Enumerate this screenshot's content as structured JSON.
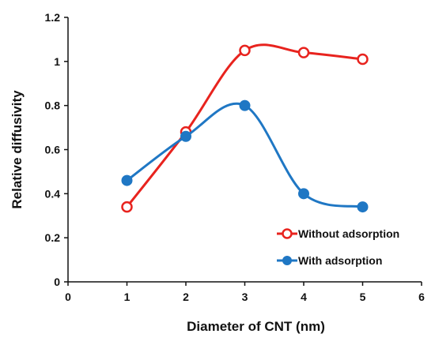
{
  "chart_data": {
    "type": "line",
    "title": "",
    "xlabel": "Diameter of CNT (nm)",
    "ylabel": "Relative diffusivity",
    "xlim": [
      0,
      6
    ],
    "ylim": [
      0,
      1.2
    ],
    "x_ticks": [
      0,
      1,
      2,
      3,
      4,
      5,
      6
    ],
    "y_ticks": [
      0,
      0.2,
      0.4,
      0.6,
      0.8,
      1,
      1.2
    ],
    "x_tick_labels": [
      "0",
      "1",
      "2",
      "3",
      "4",
      "5",
      "6"
    ],
    "y_tick_labels": [
      "0",
      "0.2",
      "0.4",
      "0.6",
      "0.8",
      "1",
      "1.2"
    ],
    "grid": false,
    "legend_position": "bottom-right",
    "smooth": true,
    "series": [
      {
        "name": "Without adsorption",
        "color": "#e8231e",
        "marker": "hollow-circle",
        "x": [
          1,
          2,
          3,
          4,
          5
        ],
        "y": [
          0.34,
          0.68,
          1.05,
          1.04,
          1.01
        ]
      },
      {
        "name": "With adsorption",
        "color": "#1f77c4",
        "marker": "filled-circle",
        "x": [
          1,
          2,
          3,
          4,
          5
        ],
        "y": [
          0.46,
          0.66,
          0.8,
          0.4,
          0.34
        ]
      }
    ]
  }
}
